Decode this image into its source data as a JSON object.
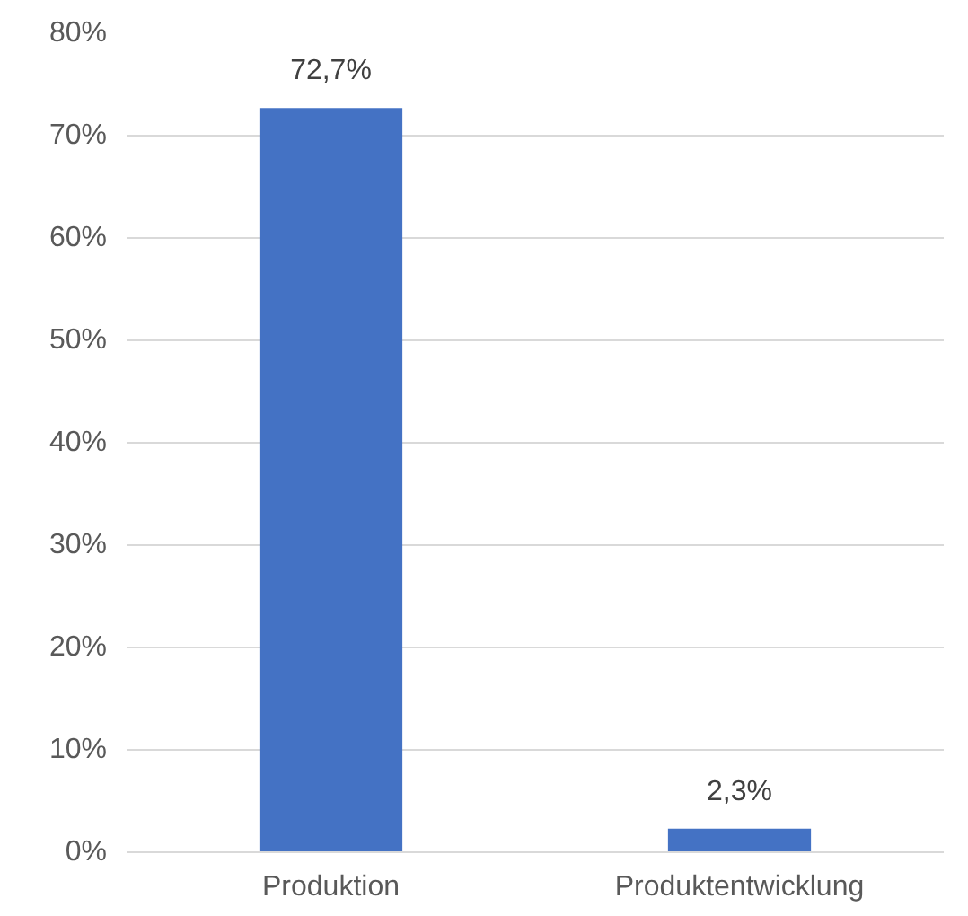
{
  "chart_data": {
    "type": "bar",
    "categories": [
      "Produktion",
      "Produktentwicklung"
    ],
    "values": [
      72.7,
      2.3
    ],
    "value_labels": [
      "72,7%",
      "2,3%"
    ],
    "color": "#4472c4",
    "ylim": [
      0,
      80
    ],
    "yticks": [
      {
        "value": 0,
        "label": "0%"
      },
      {
        "value": 10,
        "label": "10%"
      },
      {
        "value": 20,
        "label": "20%"
      },
      {
        "value": 30,
        "label": "30%"
      },
      {
        "value": 40,
        "label": "40%"
      },
      {
        "value": 50,
        "label": "50%"
      },
      {
        "value": 60,
        "label": "60%"
      },
      {
        "value": 70,
        "label": "70%"
      },
      {
        "value": 80,
        "label": "80%"
      }
    ],
    "grid": "y"
  }
}
